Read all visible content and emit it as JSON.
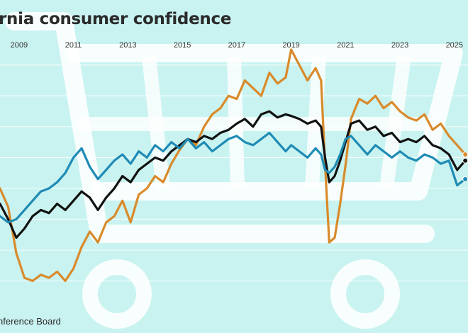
{
  "title": "rnia consumer confidence",
  "source": "nference Board",
  "colors": {
    "background": "#c9f3f0",
    "watermark": "#ffffff",
    "grid": "#ffffff"
  },
  "watermark_icon": "shopping-cart-icon",
  "chart_data": {
    "type": "line",
    "title": "rnia consumer confidence",
    "xlabel": "",
    "ylabel": "",
    "x_ticks": [
      "2009",
      "2011",
      "2013",
      "2015",
      "2017",
      "2019",
      "2021",
      "2023",
      "2025"
    ],
    "xlim": [
      2008.3,
      2025.5
    ],
    "ylim": [
      0,
      170
    ],
    "grid": true,
    "legend": "none",
    "series": [
      {
        "color": "#d98a2b",
        "points": [
          [
            2008.3,
            80
          ],
          [
            2008.6,
            68
          ],
          [
            2008.9,
            38
          ],
          [
            2009.2,
            22
          ],
          [
            2009.5,
            20
          ],
          [
            2009.8,
            24
          ],
          [
            2010.1,
            22
          ],
          [
            2010.4,
            26
          ],
          [
            2010.7,
            20
          ],
          [
            2011.0,
            28
          ],
          [
            2011.3,
            42
          ],
          [
            2011.6,
            52
          ],
          [
            2011.9,
            45
          ],
          [
            2012.2,
            58
          ],
          [
            2012.5,
            62
          ],
          [
            2012.8,
            72
          ],
          [
            2013.1,
            58
          ],
          [
            2013.4,
            76
          ],
          [
            2013.7,
            80
          ],
          [
            2014.0,
            88
          ],
          [
            2014.3,
            84
          ],
          [
            2014.6,
            96
          ],
          [
            2014.9,
            105
          ],
          [
            2015.2,
            112
          ],
          [
            2015.5,
            108
          ],
          [
            2015.8,
            120
          ],
          [
            2016.1,
            128
          ],
          [
            2016.4,
            132
          ],
          [
            2016.7,
            140
          ],
          [
            2017.0,
            138
          ],
          [
            2017.3,
            150
          ],
          [
            2017.6,
            145
          ],
          [
            2017.9,
            140
          ],
          [
            2018.2,
            155
          ],
          [
            2018.5,
            148
          ],
          [
            2018.8,
            152
          ],
          [
            2019.0,
            170
          ],
          [
            2019.3,
            160
          ],
          [
            2019.6,
            150
          ],
          [
            2019.9,
            158
          ],
          [
            2020.1,
            150
          ],
          [
            2020.25,
            95
          ],
          [
            2020.4,
            45
          ],
          [
            2020.6,
            48
          ],
          [
            2020.8,
            70
          ],
          [
            2021.0,
            95
          ],
          [
            2021.2,
            125
          ],
          [
            2021.5,
            138
          ],
          [
            2021.8,
            135
          ],
          [
            2022.1,
            140
          ],
          [
            2022.4,
            132
          ],
          [
            2022.7,
            136
          ],
          [
            2023.0,
            130
          ],
          [
            2023.3,
            126
          ],
          [
            2023.6,
            124
          ],
          [
            2023.9,
            128
          ],
          [
            2024.2,
            118
          ],
          [
            2024.5,
            122
          ],
          [
            2024.8,
            114
          ],
          [
            2025.1,
            108
          ],
          [
            2025.4,
            102
          ]
        ]
      },
      {
        "color": "#111111",
        "points": [
          [
            2008.3,
            70
          ],
          [
            2008.6,
            60
          ],
          [
            2008.9,
            48
          ],
          [
            2009.2,
            54
          ],
          [
            2009.5,
            62
          ],
          [
            2009.8,
            66
          ],
          [
            2010.1,
            64
          ],
          [
            2010.4,
            70
          ],
          [
            2010.7,
            66
          ],
          [
            2011.0,
            72
          ],
          [
            2011.3,
            78
          ],
          [
            2011.6,
            74
          ],
          [
            2011.9,
            66
          ],
          [
            2012.2,
            74
          ],
          [
            2012.5,
            80
          ],
          [
            2012.8,
            88
          ],
          [
            2013.1,
            84
          ],
          [
            2013.4,
            92
          ],
          [
            2013.7,
            96
          ],
          [
            2014.0,
            100
          ],
          [
            2014.3,
            98
          ],
          [
            2014.6,
            104
          ],
          [
            2014.9,
            108
          ],
          [
            2015.2,
            112
          ],
          [
            2015.5,
            110
          ],
          [
            2015.8,
            114
          ],
          [
            2016.1,
            112
          ],
          [
            2016.4,
            116
          ],
          [
            2016.7,
            118
          ],
          [
            2017.0,
            122
          ],
          [
            2017.3,
            125
          ],
          [
            2017.6,
            120
          ],
          [
            2017.9,
            128
          ],
          [
            2018.2,
            130
          ],
          [
            2018.5,
            126
          ],
          [
            2018.8,
            128
          ],
          [
            2019.0,
            127
          ],
          [
            2019.3,
            125
          ],
          [
            2019.6,
            122
          ],
          [
            2019.9,
            124
          ],
          [
            2020.1,
            120
          ],
          [
            2020.25,
            100
          ],
          [
            2020.4,
            84
          ],
          [
            2020.6,
            88
          ],
          [
            2020.8,
            98
          ],
          [
            2021.0,
            110
          ],
          [
            2021.2,
            122
          ],
          [
            2021.5,
            124
          ],
          [
            2021.8,
            118
          ],
          [
            2022.1,
            120
          ],
          [
            2022.4,
            114
          ],
          [
            2022.7,
            116
          ],
          [
            2023.0,
            110
          ],
          [
            2023.3,
            112
          ],
          [
            2023.6,
            110
          ],
          [
            2023.9,
            114
          ],
          [
            2024.2,
            108
          ],
          [
            2024.5,
            106
          ],
          [
            2024.8,
            102
          ],
          [
            2025.1,
            92
          ],
          [
            2025.4,
            98
          ]
        ]
      },
      {
        "color": "#1f8bb5",
        "points": [
          [
            2008.3,
            62
          ],
          [
            2008.6,
            58
          ],
          [
            2008.9,
            60
          ],
          [
            2009.2,
            66
          ],
          [
            2009.5,
            72
          ],
          [
            2009.8,
            78
          ],
          [
            2010.1,
            80
          ],
          [
            2010.4,
            84
          ],
          [
            2010.7,
            90
          ],
          [
            2011.0,
            100
          ],
          [
            2011.3,
            106
          ],
          [
            2011.6,
            94
          ],
          [
            2011.9,
            86
          ],
          [
            2012.2,
            92
          ],
          [
            2012.5,
            98
          ],
          [
            2012.8,
            102
          ],
          [
            2013.1,
            96
          ],
          [
            2013.4,
            104
          ],
          [
            2013.7,
            100
          ],
          [
            2014.0,
            108
          ],
          [
            2014.3,
            104
          ],
          [
            2014.6,
            110
          ],
          [
            2014.9,
            106
          ],
          [
            2015.2,
            112
          ],
          [
            2015.5,
            106
          ],
          [
            2015.8,
            110
          ],
          [
            2016.1,
            104
          ],
          [
            2016.4,
            108
          ],
          [
            2016.7,
            112
          ],
          [
            2017.0,
            114
          ],
          [
            2017.3,
            110
          ],
          [
            2017.6,
            108
          ],
          [
            2017.9,
            112
          ],
          [
            2018.2,
            116
          ],
          [
            2018.5,
            110
          ],
          [
            2018.8,
            104
          ],
          [
            2019.0,
            108
          ],
          [
            2019.3,
            104
          ],
          [
            2019.6,
            100
          ],
          [
            2019.9,
            106
          ],
          [
            2020.1,
            102
          ],
          [
            2020.25,
            92
          ],
          [
            2020.4,
            90
          ],
          [
            2020.6,
            94
          ],
          [
            2020.8,
            102
          ],
          [
            2021.0,
            112
          ],
          [
            2021.2,
            114
          ],
          [
            2021.5,
            108
          ],
          [
            2021.8,
            102
          ],
          [
            2022.1,
            108
          ],
          [
            2022.4,
            104
          ],
          [
            2022.7,
            100
          ],
          [
            2023.0,
            104
          ],
          [
            2023.3,
            100
          ],
          [
            2023.6,
            98
          ],
          [
            2023.9,
            102
          ],
          [
            2024.2,
            100
          ],
          [
            2024.5,
            96
          ],
          [
            2024.8,
            98
          ],
          [
            2025.1,
            82
          ],
          [
            2025.4,
            86
          ]
        ]
      }
    ]
  }
}
